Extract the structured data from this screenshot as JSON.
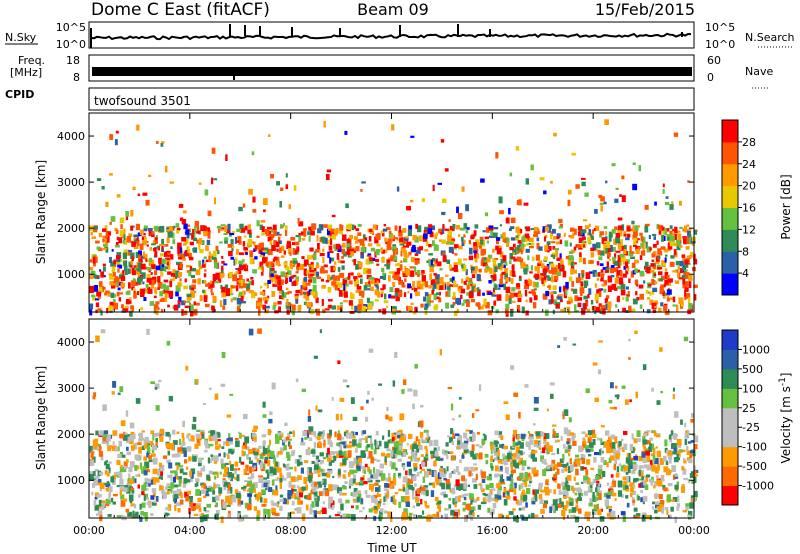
{
  "header": {
    "station": "Dome C East (fitACF)",
    "beam": "Beam 09",
    "date": "15/Feb/2015"
  },
  "noise_panel": {
    "left_label": "N.Sky",
    "left_ticks": [
      "10^5",
      "10^0"
    ],
    "right_ticks": [
      "10^5",
      "10^0"
    ],
    "right_label": "N.Search"
  },
  "freq_panel": {
    "left_label_line1": "Freq.",
    "left_label_line2": "[MHz]",
    "left_ticks": [
      "18",
      "8"
    ],
    "right_ticks": [
      "60",
      "0"
    ],
    "right_label": "Nave"
  },
  "cpid_panel": {
    "left_label": "CPID",
    "program": "twofsound 3501"
  },
  "colors": {
    "power_scale": [
      "#0000ff",
      "#2b5fa8",
      "#2e8b57",
      "#66c040",
      "#e8c800",
      "#ff9a00",
      "#ff5500",
      "#ff0000"
    ],
    "velocity_scale": [
      "#ff0000",
      "#ff6a00",
      "#ff9a00",
      "#bebebe",
      "#bebebe",
      "#66c040",
      "#2e8b57",
      "#2b5fa8",
      "#1e3cc8"
    ]
  },
  "chart_data": [
    {
      "type": "heatmap",
      "name": "power_panel",
      "ylabel": "Slant Range [km]",
      "yticks": [
        "1000",
        "2000",
        "3000",
        "4000"
      ],
      "ylim": [
        180,
        4500
      ],
      "colorbar_label": "Power [dB]",
      "colorbar_ticks": [
        "4",
        "8",
        "12",
        "16",
        "20",
        "24",
        "28"
      ],
      "colorbar_range": [
        0,
        32
      ]
    },
    {
      "type": "heatmap",
      "name": "velocity_panel",
      "xlabel": "Time UT",
      "ylabel": "Slant Range [km]",
      "yticks": [
        "1000",
        "2000",
        "3000",
        "4000"
      ],
      "ylim": [
        180,
        4500
      ],
      "xticks": [
        "00:00",
        "04:00",
        "08:00",
        "12:00",
        "16:00",
        "20:00",
        "00:00"
      ],
      "xlim_hours": [
        0,
        24
      ],
      "colorbar_label": "Velocity [m s-1]",
      "colorbar_ticks": [
        "1000",
        "500",
        "100",
        "25",
        "-25",
        "-100",
        "-500",
        "-1000"
      ]
    }
  ]
}
